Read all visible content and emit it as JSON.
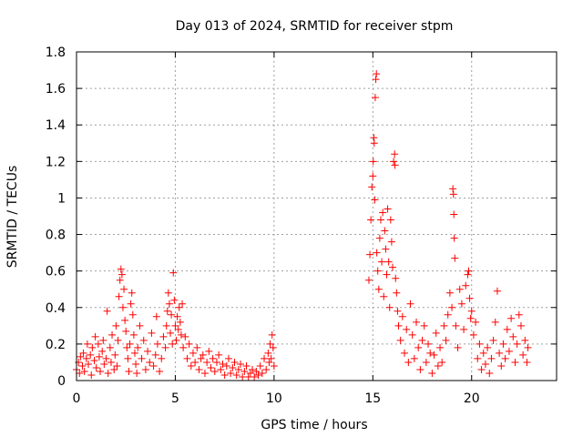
{
  "chart_data": {
    "type": "scatter",
    "title": "Day 013 of 2024, SRMTID for receiver stpm",
    "xlabel": "GPS time / hours",
    "ylabel": "SRMTID / TECUs",
    "xlim": [
      0,
      24.3
    ],
    "ylim": [
      0,
      1.8
    ],
    "xticks": [
      0,
      5,
      10,
      15,
      20
    ],
    "xtick_labels": [
      "0",
      "5",
      "10",
      "15",
      "20"
    ],
    "yticks": [
      0,
      0.2,
      0.4,
      0.6,
      0.8,
      1.0,
      1.2,
      1.4,
      1.6,
      1.8
    ],
    "ytick_labels": [
      "0",
      "0.2",
      "0.4",
      "0.6",
      "0.8",
      "1",
      "1.2",
      "1.4",
      "1.6",
      "1.8"
    ],
    "grid": true,
    "marker": "+",
    "color": "#ff0000",
    "series": [
      {
        "name": "SRMTID",
        "points": [
          [
            0.0,
            0.06
          ],
          [
            0.1,
            0.1
          ],
          [
            0.15,
            0.04
          ],
          [
            0.2,
            0.13
          ],
          [
            0.3,
            0.08
          ],
          [
            0.35,
            0.15
          ],
          [
            0.4,
            0.05
          ],
          [
            0.5,
            0.12
          ],
          [
            0.55,
            0.2
          ],
          [
            0.6,
            0.09
          ],
          [
            0.7,
            0.14
          ],
          [
            0.75,
            0.03
          ],
          [
            0.8,
            0.18
          ],
          [
            0.9,
            0.11
          ],
          [
            0.95,
            0.24
          ],
          [
            1.0,
            0.07
          ],
          [
            1.1,
            0.2
          ],
          [
            1.15,
            0.13
          ],
          [
            1.2,
            0.05
          ],
          [
            1.3,
            0.16
          ],
          [
            1.35,
            0.22
          ],
          [
            1.4,
            0.09
          ],
          [
            1.5,
            0.12
          ],
          [
            1.55,
            0.38
          ],
          [
            1.6,
            0.04
          ],
          [
            1.7,
            0.18
          ],
          [
            1.75,
            0.1
          ],
          [
            1.8,
            0.25
          ],
          [
            1.9,
            0.06
          ],
          [
            1.95,
            0.14
          ],
          [
            2.0,
            0.3
          ],
          [
            2.05,
            0.08
          ],
          [
            2.1,
            0.22
          ],
          [
            2.15,
            0.46
          ],
          [
            2.2,
            0.55
          ],
          [
            2.25,
            0.61
          ],
          [
            2.3,
            0.58
          ],
          [
            2.35,
            0.4
          ],
          [
            2.4,
            0.5
          ],
          [
            2.45,
            0.33
          ],
          [
            2.5,
            0.27
          ],
          [
            2.55,
            0.18
          ],
          [
            2.6,
            0.12
          ],
          [
            2.65,
            0.05
          ],
          [
            2.7,
            0.2
          ],
          [
            2.75,
            0.42
          ],
          [
            2.8,
            0.48
          ],
          [
            2.85,
            0.36
          ],
          [
            2.9,
            0.25
          ],
          [
            2.95,
            0.15
          ],
          [
            3.0,
            0.09
          ],
          [
            3.05,
            0.04
          ],
          [
            3.1,
            0.18
          ],
          [
            3.2,
            0.3
          ],
          [
            3.3,
            0.12
          ],
          [
            3.4,
            0.22
          ],
          [
            3.5,
            0.06
          ],
          [
            3.6,
            0.16
          ],
          [
            3.7,
            0.1
          ],
          [
            3.8,
            0.26
          ],
          [
            3.9,
            0.08
          ],
          [
            4.0,
            0.14
          ],
          [
            4.05,
            0.35
          ],
          [
            4.1,
            0.2
          ],
          [
            4.2,
            0.05
          ],
          [
            4.3,
            0.12
          ],
          [
            4.4,
            0.24
          ],
          [
            4.5,
            0.18
          ],
          [
            4.55,
            0.3
          ],
          [
            4.6,
            0.38
          ],
          [
            4.65,
            0.48
          ],
          [
            4.7,
            0.42
          ],
          [
            4.75,
            0.26
          ],
          [
            4.8,
            0.36
          ],
          [
            4.85,
            0.2
          ],
          [
            4.9,
            0.59
          ],
          [
            4.95,
            0.44
          ],
          [
            5.0,
            0.3
          ],
          [
            5.05,
            0.22
          ],
          [
            5.1,
            0.35
          ],
          [
            5.15,
            0.28
          ],
          [
            5.2,
            0.4
          ],
          [
            5.25,
            0.32
          ],
          [
            5.3,
            0.25
          ],
          [
            5.35,
            0.42
          ],
          [
            5.4,
            0.18
          ],
          [
            5.5,
            0.24
          ],
          [
            5.6,
            0.12
          ],
          [
            5.7,
            0.2
          ],
          [
            5.8,
            0.08
          ],
          [
            5.9,
            0.15
          ],
          [
            6.0,
            0.1
          ],
          [
            6.1,
            0.18
          ],
          [
            6.2,
            0.06
          ],
          [
            6.3,
            0.12
          ],
          [
            6.4,
            0.14
          ],
          [
            6.5,
            0.04
          ],
          [
            6.6,
            0.1
          ],
          [
            6.7,
            0.16
          ],
          [
            6.8,
            0.07
          ],
          [
            6.9,
            0.12
          ],
          [
            7.0,
            0.05
          ],
          [
            7.1,
            0.1
          ],
          [
            7.2,
            0.14
          ],
          [
            7.3,
            0.06
          ],
          [
            7.4,
            0.09
          ],
          [
            7.5,
            0.03
          ],
          [
            7.6,
            0.08
          ],
          [
            7.7,
            0.12
          ],
          [
            7.8,
            0.04
          ],
          [
            7.9,
            0.07
          ],
          [
            8.0,
            0.1
          ],
          [
            8.1,
            0.03
          ],
          [
            8.2,
            0.06
          ],
          [
            8.3,
            0.09
          ],
          [
            8.4,
            0.02
          ],
          [
            8.5,
            0.05
          ],
          [
            8.6,
            0.08
          ],
          [
            8.7,
            0.02
          ],
          [
            8.8,
            0.04
          ],
          [
            8.9,
            0.06
          ],
          [
            9.0,
            0.02
          ],
          [
            9.1,
            0.05
          ],
          [
            9.2,
            0.03
          ],
          [
            9.3,
            0.08
          ],
          [
            9.4,
            0.04
          ],
          [
            9.5,
            0.12
          ],
          [
            9.6,
            0.06
          ],
          [
            9.7,
            0.15
          ],
          [
            9.75,
            0.1
          ],
          [
            9.8,
            0.2
          ],
          [
            9.85,
            0.12
          ],
          [
            9.9,
            0.25
          ],
          [
            9.95,
            0.18
          ],
          [
            10.0,
            0.08
          ],
          [
            14.8,
            0.55
          ],
          [
            14.85,
            0.69
          ],
          [
            14.9,
            0.88
          ],
          [
            14.95,
            1.06
          ],
          [
            15.0,
            1.12
          ],
          [
            15.02,
            1.2
          ],
          [
            15.05,
            1.33
          ],
          [
            15.07,
            1.3
          ],
          [
            15.1,
            0.99
          ],
          [
            15.12,
            1.55
          ],
          [
            15.15,
            1.65
          ],
          [
            15.18,
            1.68
          ],
          [
            15.2,
            0.7
          ],
          [
            15.25,
            0.6
          ],
          [
            15.3,
            0.5
          ],
          [
            15.35,
            0.78
          ],
          [
            15.4,
            0.88
          ],
          [
            15.45,
            0.65
          ],
          [
            15.5,
            0.92
          ],
          [
            15.55,
            0.46
          ],
          [
            15.6,
            0.82
          ],
          [
            15.65,
            0.72
          ],
          [
            15.7,
            0.58
          ],
          [
            15.75,
            0.94
          ],
          [
            15.8,
            0.65
          ],
          [
            15.85,
            0.4
          ],
          [
            15.9,
            0.88
          ],
          [
            15.95,
            0.76
          ],
          [
            16.0,
            0.62
          ],
          [
            16.05,
            1.2
          ],
          [
            16.1,
            1.24
          ],
          [
            16.12,
            1.18
          ],
          [
            16.15,
            0.56
          ],
          [
            16.2,
            0.48
          ],
          [
            16.25,
            0.38
          ],
          [
            16.3,
            0.3
          ],
          [
            16.4,
            0.22
          ],
          [
            16.5,
            0.35
          ],
          [
            16.6,
            0.15
          ],
          [
            16.7,
            0.28
          ],
          [
            16.8,
            0.1
          ],
          [
            16.9,
            0.42
          ],
          [
            17.0,
            0.25
          ],
          [
            17.1,
            0.12
          ],
          [
            17.2,
            0.32
          ],
          [
            17.3,
            0.18
          ],
          [
            17.4,
            0.06
          ],
          [
            17.5,
            0.22
          ],
          [
            17.6,
            0.3
          ],
          [
            17.7,
            0.1
          ],
          [
            17.8,
            0.2
          ],
          [
            17.9,
            0.15
          ],
          [
            18.0,
            0.04
          ],
          [
            18.1,
            0.14
          ],
          [
            18.2,
            0.26
          ],
          [
            18.3,
            0.08
          ],
          [
            18.4,
            0.18
          ],
          [
            18.5,
            0.1
          ],
          [
            18.6,
            0.3
          ],
          [
            18.7,
            0.22
          ],
          [
            18.8,
            0.36
          ],
          [
            18.9,
            0.48
          ],
          [
            19.0,
            0.4
          ],
          [
            19.05,
            1.05
          ],
          [
            19.08,
            1.02
          ],
          [
            19.1,
            0.91
          ],
          [
            19.12,
            0.78
          ],
          [
            19.15,
            0.67
          ],
          [
            19.2,
            0.3
          ],
          [
            19.3,
            0.18
          ],
          [
            19.4,
            0.5
          ],
          [
            19.5,
            0.42
          ],
          [
            19.6,
            0.28
          ],
          [
            19.7,
            0.52
          ],
          [
            19.8,
            0.58
          ],
          [
            19.85,
            0.6
          ],
          [
            19.9,
            0.45
          ],
          [
            19.95,
            0.34
          ],
          [
            20.0,
            0.38
          ],
          [
            20.1,
            0.25
          ],
          [
            20.2,
            0.32
          ],
          [
            20.3,
            0.12
          ],
          [
            20.4,
            0.2
          ],
          [
            20.5,
            0.06
          ],
          [
            20.6,
            0.15
          ],
          [
            20.7,
            0.09
          ],
          [
            20.8,
            0.18
          ],
          [
            20.9,
            0.04
          ],
          [
            21.0,
            0.12
          ],
          [
            21.1,
            0.22
          ],
          [
            21.2,
            0.32
          ],
          [
            21.3,
            0.49
          ],
          [
            21.4,
            0.15
          ],
          [
            21.5,
            0.08
          ],
          [
            21.6,
            0.2
          ],
          [
            21.7,
            0.12
          ],
          [
            21.8,
            0.28
          ],
          [
            21.9,
            0.16
          ],
          [
            22.0,
            0.34
          ],
          [
            22.1,
            0.24
          ],
          [
            22.2,
            0.1
          ],
          [
            22.3,
            0.2
          ],
          [
            22.4,
            0.36
          ],
          [
            22.5,
            0.3
          ],
          [
            22.6,
            0.14
          ],
          [
            22.7,
            0.22
          ],
          [
            22.8,
            0.1
          ],
          [
            22.85,
            0.18
          ]
        ]
      }
    ]
  }
}
